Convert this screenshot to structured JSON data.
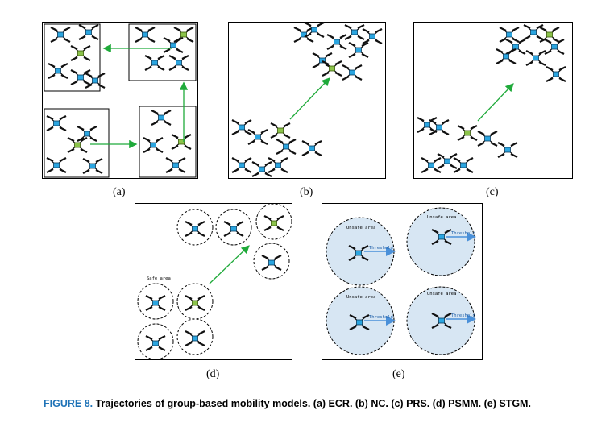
{
  "caption": {
    "lead": "FIGURE 8.",
    "text": "Trajectories of group-based mobility models. (a) ECR. (b) NC. (c) PRS. (d) PSMM. (e) STGM."
  },
  "panels": {
    "a": {
      "label": "(a)"
    },
    "b": {
      "label": "(b)"
    },
    "c": {
      "label": "(c)"
    },
    "d": {
      "label": "(d)",
      "safe_label": "Safe area"
    },
    "e": {
      "label": "(e)",
      "unsafe_label": "Unsafe area",
      "threshold_label": "Threshold"
    }
  },
  "colors": {
    "arrow": "#1faa3a",
    "drone_blue": "#2aa5e0",
    "drone_leader": "#8bc34a",
    "unsafe_fill": "#d7e6f3",
    "threshold_arrow": "#4a90d9"
  }
}
